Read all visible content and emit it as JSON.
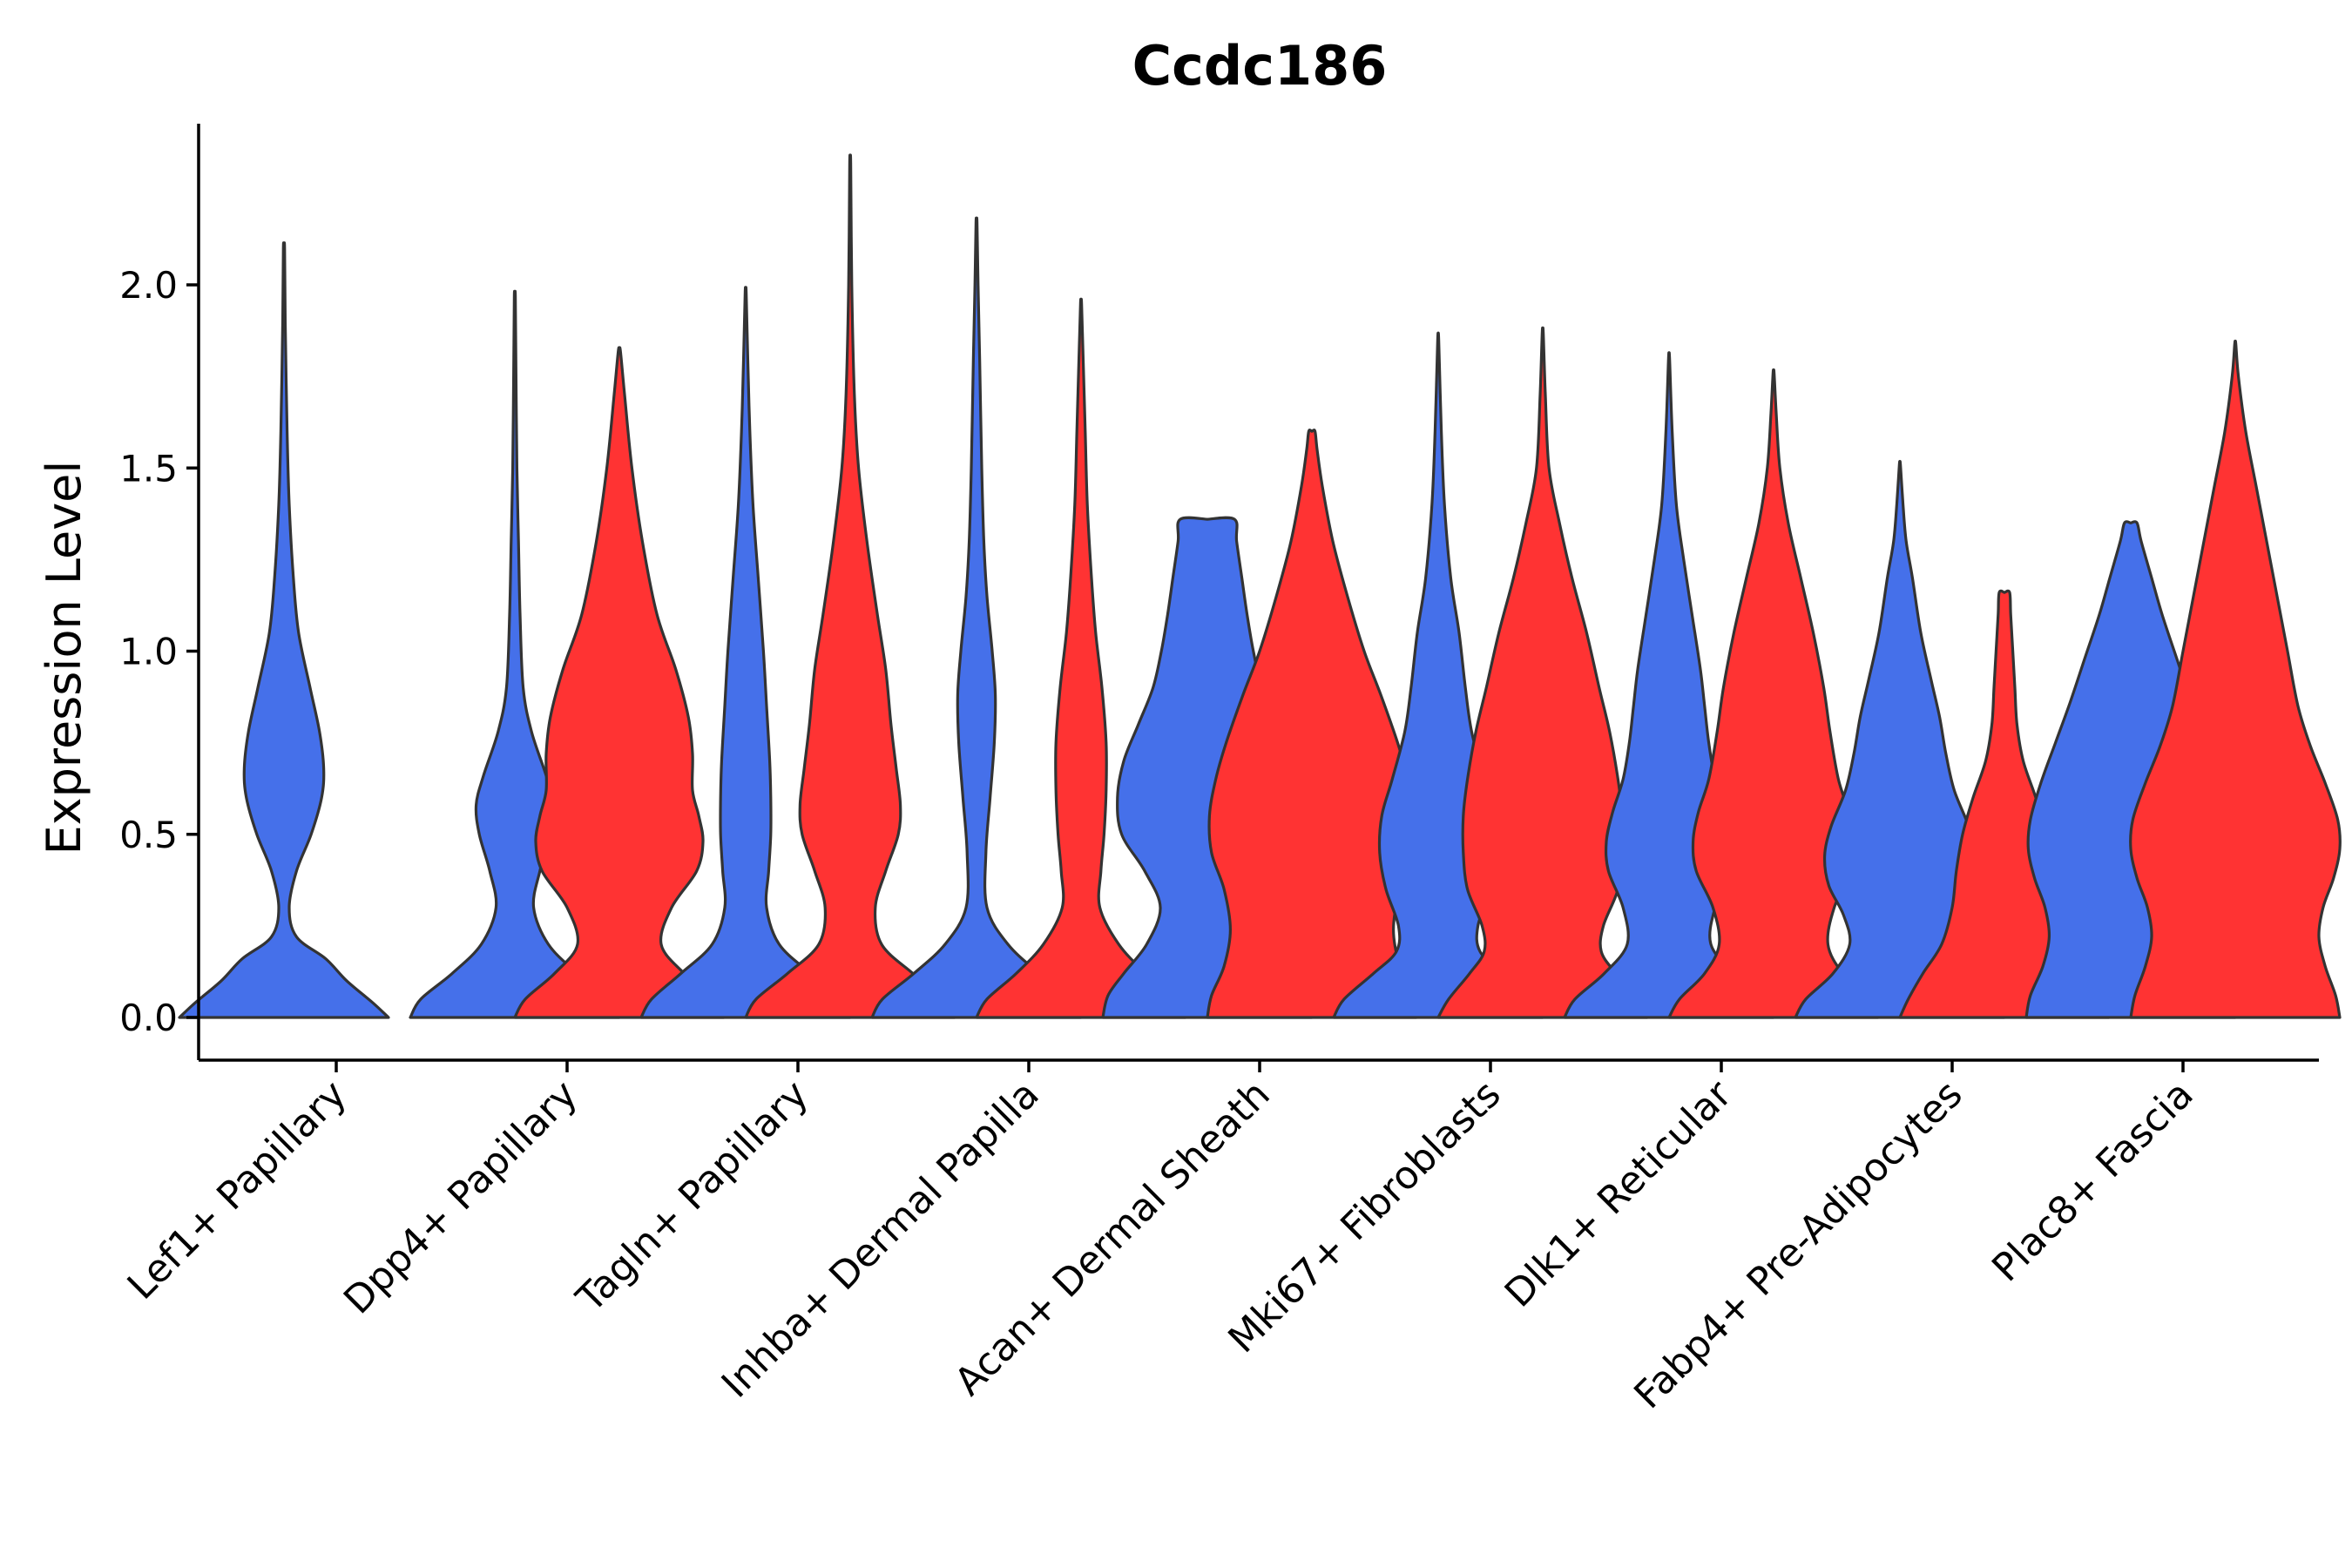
{
  "chart_data": {
    "type": "violin",
    "title": "Ccdc186",
    "ylabel": "Expression Level",
    "xlabel": "",
    "ylim": [
      -0.12,
      2.45
    ],
    "yticks": [
      0.0,
      0.5,
      1.0,
      1.5,
      2.0
    ],
    "ytick_labels": [
      "0.0",
      "0.5",
      "1.0",
      "1.5",
      "2.0"
    ],
    "colors": {
      "group_a": "#4570EA",
      "group_b": "#FF3333"
    },
    "categories": [
      "Lef1+ Papillary",
      "Dpp4+ Papillary",
      "Tagln+ Papillary",
      "Inhba+ Dermal Papilla",
      "Acan+ Dermal Sheath",
      "Mki67+ Fibroblasts",
      "Dlk1+ Reticular",
      "Fabp4+ Pre-Adipocytes",
      "Plac8+ Fascia"
    ],
    "violins": [
      {
        "category": 0,
        "group": "group_a",
        "max": 2.1,
        "profile": [
          [
            0,
            1.0
          ],
          [
            0.04,
            0.85
          ],
          [
            0.1,
            0.6
          ],
          [
            0.16,
            0.4
          ],
          [
            0.22,
            0.12
          ],
          [
            0.3,
            0.05
          ],
          [
            0.4,
            0.12
          ],
          [
            0.5,
            0.26
          ],
          [
            0.6,
            0.36
          ],
          [
            0.68,
            0.38
          ],
          [
            0.78,
            0.34
          ],
          [
            0.9,
            0.25
          ],
          [
            1.05,
            0.14
          ],
          [
            1.2,
            0.09
          ],
          [
            1.4,
            0.05
          ],
          [
            1.6,
            0.03
          ],
          [
            1.9,
            0.012
          ],
          [
            2.1,
            0.006
          ]
        ]
      },
      {
        "category": 1,
        "group": "group_a",
        "max": 1.97,
        "profile": [
          [
            0,
            1.0
          ],
          [
            0.05,
            0.9
          ],
          [
            0.12,
            0.6
          ],
          [
            0.2,
            0.32
          ],
          [
            0.3,
            0.18
          ],
          [
            0.4,
            0.24
          ],
          [
            0.5,
            0.34
          ],
          [
            0.58,
            0.37
          ],
          [
            0.66,
            0.3
          ],
          [
            0.78,
            0.16
          ],
          [
            0.9,
            0.08
          ],
          [
            1.1,
            0.05
          ],
          [
            1.3,
            0.035
          ],
          [
            1.5,
            0.02
          ],
          [
            1.8,
            0.01
          ],
          [
            1.97,
            0.005
          ]
        ]
      },
      {
        "category": 1,
        "group": "group_b",
        "max": 1.82,
        "profile": [
          [
            0,
            1.0
          ],
          [
            0.05,
            0.9
          ],
          [
            0.12,
            0.62
          ],
          [
            0.2,
            0.4
          ],
          [
            0.3,
            0.5
          ],
          [
            0.4,
            0.74
          ],
          [
            0.48,
            0.8
          ],
          [
            0.55,
            0.76
          ],
          [
            0.62,
            0.7
          ],
          [
            0.72,
            0.7
          ],
          [
            0.82,
            0.66
          ],
          [
            0.95,
            0.54
          ],
          [
            1.1,
            0.36
          ],
          [
            1.3,
            0.22
          ],
          [
            1.5,
            0.12
          ],
          [
            1.7,
            0.05
          ],
          [
            1.82,
            0.01
          ]
        ]
      },
      {
        "category": 2,
        "group": "group_a",
        "max": 1.98,
        "profile": [
          [
            0,
            1.0
          ],
          [
            0.05,
            0.9
          ],
          [
            0.12,
            0.62
          ],
          [
            0.2,
            0.32
          ],
          [
            0.3,
            0.2
          ],
          [
            0.4,
            0.22
          ],
          [
            0.5,
            0.24
          ],
          [
            0.6,
            0.24
          ],
          [
            0.7,
            0.23
          ],
          [
            0.85,
            0.2
          ],
          [
            1.0,
            0.17
          ],
          [
            1.2,
            0.12
          ],
          [
            1.4,
            0.07
          ],
          [
            1.6,
            0.04
          ],
          [
            1.8,
            0.02
          ],
          [
            1.98,
            0.005
          ]
        ]
      },
      {
        "category": 2,
        "group": "group_b",
        "max": 2.33,
        "profile": [
          [
            0,
            1.0
          ],
          [
            0.05,
            0.9
          ],
          [
            0.12,
            0.6
          ],
          [
            0.2,
            0.3
          ],
          [
            0.3,
            0.24
          ],
          [
            0.4,
            0.34
          ],
          [
            0.5,
            0.46
          ],
          [
            0.58,
            0.48
          ],
          [
            0.68,
            0.44
          ],
          [
            0.8,
            0.39
          ],
          [
            0.95,
            0.34
          ],
          [
            1.1,
            0.26
          ],
          [
            1.3,
            0.16
          ],
          [
            1.5,
            0.08
          ],
          [
            1.7,
            0.04
          ],
          [
            2.0,
            0.015
          ],
          [
            2.33,
            0.005
          ]
        ]
      },
      {
        "category": 3,
        "group": "group_a",
        "max": 2.17,
        "profile": [
          [
            0,
            1.0
          ],
          [
            0.05,
            0.9
          ],
          [
            0.12,
            0.6
          ],
          [
            0.2,
            0.3
          ],
          [
            0.3,
            0.1
          ],
          [
            0.45,
            0.09
          ],
          [
            0.6,
            0.13
          ],
          [
            0.75,
            0.17
          ],
          [
            0.88,
            0.18
          ],
          [
            1.0,
            0.15
          ],
          [
            1.15,
            0.1
          ],
          [
            1.3,
            0.07
          ],
          [
            1.5,
            0.05
          ],
          [
            1.8,
            0.03
          ],
          [
            2.0,
            0.015
          ],
          [
            2.17,
            0.005
          ]
        ]
      },
      {
        "category": 3,
        "group": "group_b",
        "max": 1.95,
        "profile": [
          [
            0,
            1.0
          ],
          [
            0.05,
            0.9
          ],
          [
            0.12,
            0.62
          ],
          [
            0.2,
            0.36
          ],
          [
            0.3,
            0.18
          ],
          [
            0.4,
            0.19
          ],
          [
            0.5,
            0.22
          ],
          [
            0.62,
            0.24
          ],
          [
            0.75,
            0.24
          ],
          [
            0.9,
            0.2
          ],
          [
            1.05,
            0.14
          ],
          [
            1.2,
            0.1
          ],
          [
            1.4,
            0.06
          ],
          [
            1.6,
            0.04
          ],
          [
            1.8,
            0.02
          ],
          [
            1.95,
            0.005
          ]
        ]
      },
      {
        "category": 4,
        "group": "group_a",
        "max": 1.36,
        "profile": [
          [
            0,
            1.0
          ],
          [
            0.06,
            0.95
          ],
          [
            0.12,
            0.8
          ],
          [
            0.2,
            0.58
          ],
          [
            0.3,
            0.45
          ],
          [
            0.4,
            0.6
          ],
          [
            0.5,
            0.82
          ],
          [
            0.6,
            0.86
          ],
          [
            0.7,
            0.8
          ],
          [
            0.8,
            0.66
          ],
          [
            0.9,
            0.52
          ],
          [
            1.0,
            0.44
          ],
          [
            1.1,
            0.38
          ],
          [
            1.2,
            0.33
          ],
          [
            1.3,
            0.28
          ],
          [
            1.36,
            0.26
          ]
        ]
      },
      {
        "category": 4,
        "group": "group_b",
        "max": 1.6,
        "profile": [
          [
            0,
            1.0
          ],
          [
            0.06,
            0.96
          ],
          [
            0.14,
            0.84
          ],
          [
            0.24,
            0.78
          ],
          [
            0.35,
            0.84
          ],
          [
            0.45,
            0.96
          ],
          [
            0.55,
            0.98
          ],
          [
            0.65,
            0.92
          ],
          [
            0.75,
            0.82
          ],
          [
            0.88,
            0.66
          ],
          [
            1.0,
            0.5
          ],
          [
            1.15,
            0.34
          ],
          [
            1.3,
            0.2
          ],
          [
            1.45,
            0.1
          ],
          [
            1.55,
            0.05
          ],
          [
            1.6,
            0.03
          ]
        ]
      },
      {
        "category": 5,
        "group": "group_a",
        "max": 1.85,
        "profile": [
          [
            0,
            1.0
          ],
          [
            0.05,
            0.9
          ],
          [
            0.12,
            0.62
          ],
          [
            0.18,
            0.4
          ],
          [
            0.25,
            0.38
          ],
          [
            0.35,
            0.5
          ],
          [
            0.45,
            0.56
          ],
          [
            0.55,
            0.54
          ],
          [
            0.65,
            0.44
          ],
          [
            0.78,
            0.32
          ],
          [
            0.9,
            0.26
          ],
          [
            1.05,
            0.2
          ],
          [
            1.2,
            0.12
          ],
          [
            1.4,
            0.06
          ],
          [
            1.6,
            0.03
          ],
          [
            1.85,
            0.005
          ]
        ]
      },
      {
        "category": 5,
        "group": "group_b",
        "max": 1.87,
        "profile": [
          [
            0,
            1.0
          ],
          [
            0.05,
            0.9
          ],
          [
            0.12,
            0.7
          ],
          [
            0.18,
            0.56
          ],
          [
            0.25,
            0.58
          ],
          [
            0.35,
            0.72
          ],
          [
            0.45,
            0.76
          ],
          [
            0.55,
            0.76
          ],
          [
            0.65,
            0.72
          ],
          [
            0.78,
            0.64
          ],
          [
            0.9,
            0.54
          ],
          [
            1.05,
            0.42
          ],
          [
            1.2,
            0.28
          ],
          [
            1.35,
            0.16
          ],
          [
            1.5,
            0.06
          ],
          [
            1.7,
            0.025
          ],
          [
            1.87,
            0.005
          ]
        ]
      },
      {
        "category": 6,
        "group": "group_a",
        "max": 1.8,
        "profile": [
          [
            0,
            1.0
          ],
          [
            0.05,
            0.9
          ],
          [
            0.12,
            0.62
          ],
          [
            0.2,
            0.4
          ],
          [
            0.3,
            0.44
          ],
          [
            0.4,
            0.58
          ],
          [
            0.48,
            0.6
          ],
          [
            0.56,
            0.54
          ],
          [
            0.65,
            0.44
          ],
          [
            0.75,
            0.38
          ],
          [
            0.85,
            0.34
          ],
          [
            0.95,
            0.3
          ],
          [
            1.1,
            0.22
          ],
          [
            1.25,
            0.14
          ],
          [
            1.4,
            0.07
          ],
          [
            1.6,
            0.03
          ],
          [
            1.8,
            0.005
          ]
        ]
      },
      {
        "category": 6,
        "group": "group_b",
        "max": 1.76,
        "profile": [
          [
            0,
            1.0
          ],
          [
            0.05,
            0.9
          ],
          [
            0.12,
            0.66
          ],
          [
            0.2,
            0.52
          ],
          [
            0.3,
            0.58
          ],
          [
            0.4,
            0.74
          ],
          [
            0.48,
            0.77
          ],
          [
            0.56,
            0.72
          ],
          [
            0.65,
            0.62
          ],
          [
            0.78,
            0.54
          ],
          [
            0.9,
            0.48
          ],
          [
            1.05,
            0.38
          ],
          [
            1.2,
            0.26
          ],
          [
            1.35,
            0.14
          ],
          [
            1.5,
            0.06
          ],
          [
            1.65,
            0.025
          ],
          [
            1.76,
            0.005
          ]
        ]
      },
      {
        "category": 7,
        "group": "group_a",
        "max": 1.51,
        "profile": [
          [
            0,
            1.0
          ],
          [
            0.05,
            0.9
          ],
          [
            0.12,
            0.64
          ],
          [
            0.2,
            0.48
          ],
          [
            0.28,
            0.54
          ],
          [
            0.36,
            0.68
          ],
          [
            0.44,
            0.72
          ],
          [
            0.52,
            0.66
          ],
          [
            0.62,
            0.52
          ],
          [
            0.72,
            0.44
          ],
          [
            0.82,
            0.38
          ],
          [
            0.92,
            0.3
          ],
          [
            1.05,
            0.2
          ],
          [
            1.2,
            0.12
          ],
          [
            1.3,
            0.06
          ],
          [
            1.4,
            0.03
          ],
          [
            1.51,
            0.005
          ]
        ]
      },
      {
        "category": 7,
        "group": "group_b",
        "max": 1.16,
        "profile": [
          [
            0,
            1.0
          ],
          [
            0.05,
            0.92
          ],
          [
            0.12,
            0.78
          ],
          [
            0.2,
            0.6
          ],
          [
            0.3,
            0.5
          ],
          [
            0.4,
            0.46
          ],
          [
            0.5,
            0.4
          ],
          [
            0.6,
            0.3
          ],
          [
            0.7,
            0.18
          ],
          [
            0.8,
            0.12
          ],
          [
            0.9,
            0.1
          ],
          [
            1.0,
            0.08
          ],
          [
            1.1,
            0.06
          ],
          [
            1.16,
            0.05
          ]
        ]
      },
      {
        "category": 8,
        "group": "group_a",
        "max": 1.35,
        "profile": [
          [
            0,
            1.0
          ],
          [
            0.06,
            0.96
          ],
          [
            0.14,
            0.84
          ],
          [
            0.22,
            0.78
          ],
          [
            0.3,
            0.82
          ],
          [
            0.38,
            0.92
          ],
          [
            0.46,
            0.98
          ],
          [
            0.54,
            0.96
          ],
          [
            0.64,
            0.86
          ],
          [
            0.75,
            0.72
          ],
          [
            0.86,
            0.58
          ],
          [
            0.98,
            0.44
          ],
          [
            1.1,
            0.3
          ],
          [
            1.2,
            0.2
          ],
          [
            1.3,
            0.1
          ],
          [
            1.35,
            0.06
          ]
        ]
      },
      {
        "category": 8,
        "group": "group_b",
        "max": 1.84,
        "profile": [
          [
            0,
            1.0
          ],
          [
            0.06,
            0.96
          ],
          [
            0.14,
            0.86
          ],
          [
            0.22,
            0.8
          ],
          [
            0.3,
            0.84
          ],
          [
            0.38,
            0.94
          ],
          [
            0.46,
            1.0
          ],
          [
            0.54,
            0.98
          ],
          [
            0.64,
            0.86
          ],
          [
            0.74,
            0.72
          ],
          [
            0.85,
            0.6
          ],
          [
            1.0,
            0.5
          ],
          [
            1.15,
            0.4
          ],
          [
            1.3,
            0.3
          ],
          [
            1.45,
            0.2
          ],
          [
            1.6,
            0.1
          ],
          [
            1.75,
            0.03
          ],
          [
            1.84,
            0.005
          ]
        ]
      }
    ]
  }
}
